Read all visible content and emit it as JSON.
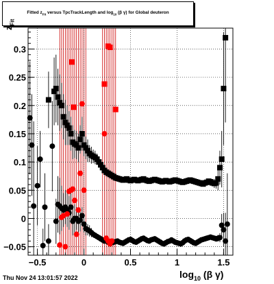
{
  "title": {
    "pre": "Fitted  z",
    "sub1": "Fit",
    "mid": "  versus  TpcTrackLength and log",
    "sub2": "10",
    "post": " (β γ) for Global deuteron"
  },
  "axes": {
    "ylabel_main": "z",
    "ylabel_sub": "Fit",
    "xlabel_main": "log",
    "xlabel_sub": "10",
    "xlabel_post": " (β γ)"
  },
  "footer": "Thu Nov 24 13:01:57 2022",
  "colors": {
    "black": "#000000",
    "red": "#ff0000",
    "band": "#cc0000",
    "grid": "#000000"
  },
  "chart_data": {
    "type": "scatter",
    "title": "Fitted z_Fit versus TpcTrackLength and log10(β γ) for Global deuteron",
    "xlabel": "log10 (β γ)",
    "ylabel": "z_Fit",
    "xlim": [
      -0.6,
      1.6
    ],
    "ylim": [
      -0.065,
      0.337
    ],
    "x_ticks": [
      -0.5,
      0,
      0.5,
      1,
      1.5
    ],
    "x_tick_labels": [
      "−0.5",
      "0",
      "0.5",
      "1",
      "1.5"
    ],
    "y_ticks": [
      -0.05,
      0,
      0.05,
      0.1,
      0.15,
      0.2,
      0.25,
      0.3
    ],
    "y_tick_labels": [
      "−0.05",
      "0",
      "0.05",
      "0.1",
      "0.15",
      "0.2",
      "0.25",
      "0.3"
    ],
    "grid": true,
    "vertical_bands": [
      [
        -0.26,
        0.02
      ],
      [
        0.2,
        0.34
      ]
    ],
    "series": [
      {
        "marker": "square",
        "color": "#000000",
        "x": [
          -0.38,
          -0.32,
          -0.3,
          -0.28,
          -0.26,
          -0.24,
          -0.22,
          -0.2,
          -0.18,
          -0.16,
          -0.14,
          -0.12,
          -0.1,
          -0.08,
          -0.06,
          -0.04,
          -0.02,
          0.0,
          0.02,
          0.04,
          0.06,
          0.08,
          0.1,
          0.12,
          0.14,
          0.16,
          0.18,
          0.2,
          0.22,
          0.24,
          0.26,
          0.28,
          0.3,
          0.32,
          0.34,
          0.36,
          0.38,
          0.4,
          0.42,
          0.44,
          0.46,
          0.48,
          0.5,
          0.52,
          0.54,
          0.56,
          0.58,
          0.6,
          0.62,
          0.64,
          0.66,
          0.68,
          0.7,
          0.72,
          0.74,
          0.76,
          0.78,
          0.8,
          0.82,
          0.84,
          0.86,
          0.88,
          0.9,
          0.92,
          0.94,
          0.96,
          0.98,
          1.0,
          1.02,
          1.04,
          1.06,
          1.08,
          1.1,
          1.12,
          1.14,
          1.16,
          1.18,
          1.2,
          1.22,
          1.24,
          1.26,
          1.28,
          1.3,
          1.32,
          1.34,
          1.36,
          1.38,
          1.4,
          1.42,
          1.44,
          1.46,
          1.48,
          1.5,
          1.52
        ],
        "y": [
          0.21,
          0.225,
          0.23,
          0.215,
          0.205,
          0.2,
          0.18,
          0.17,
          0.165,
          0.16,
          0.15,
          0.135,
          0.132,
          0.13,
          0.125,
          0.14,
          0.15,
          0.13,
          0.125,
          0.12,
          0.115,
          0.112,
          0.11,
          0.108,
          0.105,
          0.1,
          0.095,
          0.09,
          0.085,
          0.082,
          0.08,
          0.078,
          0.076,
          0.074,
          0.072,
          0.071,
          0.07,
          0.069,
          0.068,
          0.069,
          0.07,
          0.068,
          0.067,
          0.068,
          0.069,
          0.068,
          0.067,
          0.068,
          0.069,
          0.07,
          0.068,
          0.067,
          0.066,
          0.067,
          0.068,
          0.069,
          0.068,
          0.067,
          0.066,
          0.065,
          0.066,
          0.067,
          0.066,
          0.065,
          0.066,
          0.067,
          0.068,
          0.067,
          0.066,
          0.065,
          0.064,
          0.065,
          0.066,
          0.067,
          0.068,
          0.067,
          0.066,
          0.065,
          0.064,
          0.063,
          0.062,
          0.061,
          0.063,
          0.064,
          0.066,
          0.065,
          0.063,
          0.062,
          0.063,
          0.07,
          0.09,
          0.105,
          0.23,
          0.32
        ],
        "err": [
          0.05,
          0.06,
          0.06,
          0.05,
          0.05,
          0.04,
          0.04,
          0.04,
          0.035,
          0.03,
          0.03,
          0.03,
          0.025,
          0.025,
          0.025,
          0.025,
          0.03,
          0.02,
          0.02,
          0.02,
          0.015,
          0.015,
          0.012,
          0.012,
          0.01,
          0.01,
          0.008,
          0.006,
          0.005,
          0.004,
          0.004,
          0.003,
          0.003,
          0.002,
          0.002,
          0.002,
          0.002,
          0.002,
          0.002,
          0.002,
          0.002,
          0.002,
          0.002,
          0.002,
          0.002,
          0.002,
          0.002,
          0.002,
          0.002,
          0.002,
          0.002,
          0.002,
          0.002,
          0.002,
          0.002,
          0.002,
          0.002,
          0.002,
          0.002,
          0.002,
          0.002,
          0.002,
          0.002,
          0.002,
          0.002,
          0.002,
          0.002,
          0.002,
          0.002,
          0.002,
          0.002,
          0.002,
          0.002,
          0.002,
          0.002,
          0.002,
          0.002,
          0.003,
          0.003,
          0.003,
          0.003,
          0.003,
          0.003,
          0.004,
          0.004,
          0.005,
          0.006,
          0.008,
          0.01,
          0.02,
          0.03,
          0.05,
          0.1,
          0.15
        ]
      },
      {
        "marker": "circle",
        "color": "#000000",
        "x": [
          -0.58,
          -0.56,
          -0.54,
          -0.5,
          -0.47,
          -0.44,
          -0.42,
          -0.38,
          -0.34,
          -0.3,
          -0.28,
          -0.26,
          -0.24,
          -0.22,
          -0.2,
          -0.18,
          -0.16,
          -0.14,
          -0.12,
          -0.1,
          -0.08,
          -0.06,
          -0.04,
          -0.02,
          0.0,
          0.02,
          0.04,
          0.06,
          0.08,
          0.1,
          0.12,
          0.14,
          0.16,
          0.18,
          0.2,
          0.22,
          0.24,
          0.26,
          0.28,
          0.3,
          0.32,
          0.34,
          0.36,
          0.38,
          0.4,
          0.42,
          0.44,
          0.46,
          0.48,
          0.5,
          0.52,
          0.54,
          0.56,
          0.58,
          0.6,
          0.62,
          0.64,
          0.66,
          0.68,
          0.7,
          0.72,
          0.74,
          0.76,
          0.78,
          0.8,
          0.82,
          0.84,
          0.86,
          0.88,
          0.9,
          0.92,
          0.94,
          0.96,
          0.98,
          1.0,
          1.02,
          1.04,
          1.06,
          1.08,
          1.1,
          1.12,
          1.14,
          1.16,
          1.18,
          1.2,
          1.22,
          1.24,
          1.26,
          1.28,
          1.3,
          1.32,
          1.34,
          1.36,
          1.38,
          1.4,
          1.42,
          1.44,
          1.46,
          1.48,
          1.5,
          1.52,
          1.54
        ],
        "y": [
          0.178,
          0.13,
          0.022,
          0.058,
          0.105,
          -0.048,
          0.02,
          -0.04,
          0.128,
          -0.005,
          0.025,
          0.022,
          0.018,
          0.015,
          0.02,
          0.015,
          0.01,
          0.02,
          -0.005,
          0.0,
          0.0,
          -0.005,
          -0.003,
          0.005,
          -0.01,
          -0.018,
          -0.02,
          -0.022,
          -0.025,
          -0.028,
          -0.03,
          -0.032,
          -0.034,
          -0.036,
          -0.038,
          -0.04,
          -0.04,
          -0.042,
          -0.042,
          -0.043,
          -0.042,
          -0.041,
          -0.04,
          -0.042,
          -0.043,
          -0.044,
          -0.042,
          -0.04,
          -0.038,
          -0.037,
          -0.039,
          -0.041,
          -0.042,
          -0.04,
          -0.038,
          -0.036,
          -0.035,
          -0.037,
          -0.039,
          -0.04,
          -0.038,
          -0.037,
          -0.036,
          -0.038,
          -0.04,
          -0.042,
          -0.044,
          -0.045,
          -0.043,
          -0.041,
          -0.04,
          -0.038,
          -0.04,
          -0.042,
          -0.043,
          -0.044,
          -0.045,
          -0.043,
          -0.04,
          -0.038,
          -0.037,
          -0.039,
          -0.041,
          -0.043,
          -0.044,
          -0.042,
          -0.04,
          -0.038,
          -0.037,
          -0.036,
          -0.035,
          -0.034,
          -0.033,
          -0.034,
          -0.035,
          -0.036,
          -0.035,
          -0.034,
          -0.012,
          -0.02,
          -0.04,
          -0.01
        ],
        "err": [
          0.1,
          0.09,
          0.15,
          0.07,
          0.05,
          0.03,
          0.06,
          0.03,
          0.08,
          0.04,
          0.05,
          0.05,
          0.04,
          0.03,
          0.03,
          0.03,
          0.03,
          0.025,
          0.025,
          0.025,
          0.02,
          0.02,
          0.02,
          0.015,
          0.015,
          0.012,
          0.01,
          0.01,
          0.008,
          0.006,
          0.005,
          0.004,
          0.004,
          0.003,
          0.003,
          0.003,
          0.003,
          0.003,
          0.002,
          0.002,
          0.002,
          0.002,
          0.002,
          0.002,
          0.002,
          0.002,
          0.002,
          0.002,
          0.002,
          0.002,
          0.002,
          0.002,
          0.002,
          0.002,
          0.002,
          0.002,
          0.002,
          0.002,
          0.002,
          0.002,
          0.002,
          0.002,
          0.002,
          0.002,
          0.002,
          0.002,
          0.002,
          0.002,
          0.002,
          0.002,
          0.002,
          0.002,
          0.002,
          0.002,
          0.002,
          0.002,
          0.002,
          0.002,
          0.002,
          0.002,
          0.002,
          0.002,
          0.002,
          0.002,
          0.003,
          0.003,
          0.003,
          0.003,
          0.003,
          0.003,
          0.003,
          0.003,
          0.003,
          0.004,
          0.004,
          0.005,
          0.006,
          0.008,
          0.02,
          0.03,
          0.05,
          0.09
        ]
      },
      {
        "marker": "square",
        "color": "#ff0000",
        "x": [
          -0.13,
          -0.11,
          0.22,
          0.26,
          0.28,
          0.34
        ],
        "y": [
          0.277,
          0.197,
          0.238,
          0.305,
          0.303,
          0.193
        ],
        "err": [
          0,
          0,
          0,
          0,
          0,
          0
        ]
      },
      {
        "marker": "circle",
        "color": "#ff0000",
        "x": [
          -0.26,
          -0.24,
          -0.22,
          -0.2,
          -0.18,
          -0.16,
          -0.14,
          -0.12,
          -0.1,
          -0.08,
          -0.06,
          -0.04,
          -0.02,
          0.0,
          0.22,
          0.24,
          0.26,
          0.28,
          0.3
        ],
        "y": [
          -0.047,
          0.002,
          0.005,
          -0.05,
          0.008,
          0.048,
          0.05,
          0.052,
          0.032,
          -0.028,
          0.015,
          0.08,
          0.203,
          0.05,
          0.15,
          -0.035,
          -0.04,
          -0.045,
          -0.04
        ],
        "err": [
          0,
          0,
          0,
          0,
          0,
          0,
          0,
          0,
          0,
          0,
          0,
          0,
          0,
          0,
          0,
          0,
          0,
          0,
          0
        ]
      }
    ]
  }
}
